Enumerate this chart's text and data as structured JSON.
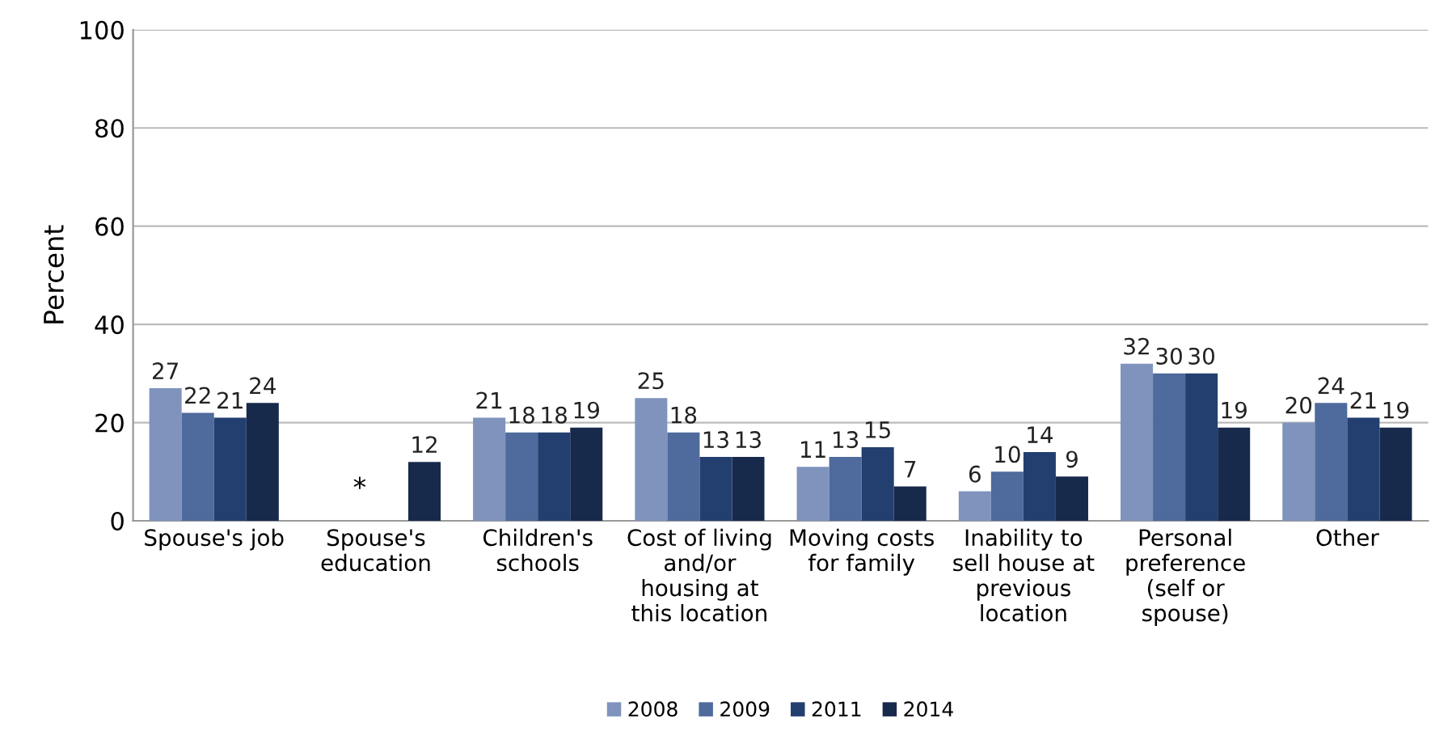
{
  "chart_data": {
    "type": "bar",
    "ylabel": "Percent",
    "categories": [
      "Spouse's job",
      "Spouse's\neducation",
      "Children's\nschools",
      "Cost of living\nand/or\nhousing at\nthis location",
      "Moving costs\nfor family",
      "Inability to\nsell house at\nprevious\nlocation",
      "Personal\npreference\n(self or\nspouse)",
      "Other"
    ],
    "series": [
      {
        "name": "2008",
        "color": "#7f93bd",
        "values": [
          27,
          null,
          21,
          25,
          11,
          6,
          32,
          20
        ]
      },
      {
        "name": "2009",
        "color": "#4f6a9c",
        "values": [
          22,
          null,
          18,
          18,
          13,
          10,
          30,
          24
        ]
      },
      {
        "name": "2011",
        "color": "#233f70",
        "values": [
          21,
          null,
          18,
          13,
          15,
          14,
          30,
          21
        ]
      },
      {
        "name": "2014",
        "color": "#172a4c",
        "values": [
          24,
          12,
          19,
          13,
          7,
          9,
          19,
          19
        ]
      }
    ],
    "annotations": [
      "*"
    ],
    "ylim": [
      0,
      100
    ],
    "yticks": [
      0,
      20,
      40,
      60,
      80,
      100
    ],
    "grid": "y",
    "legend": "bottom",
    "data_labels": true
  }
}
